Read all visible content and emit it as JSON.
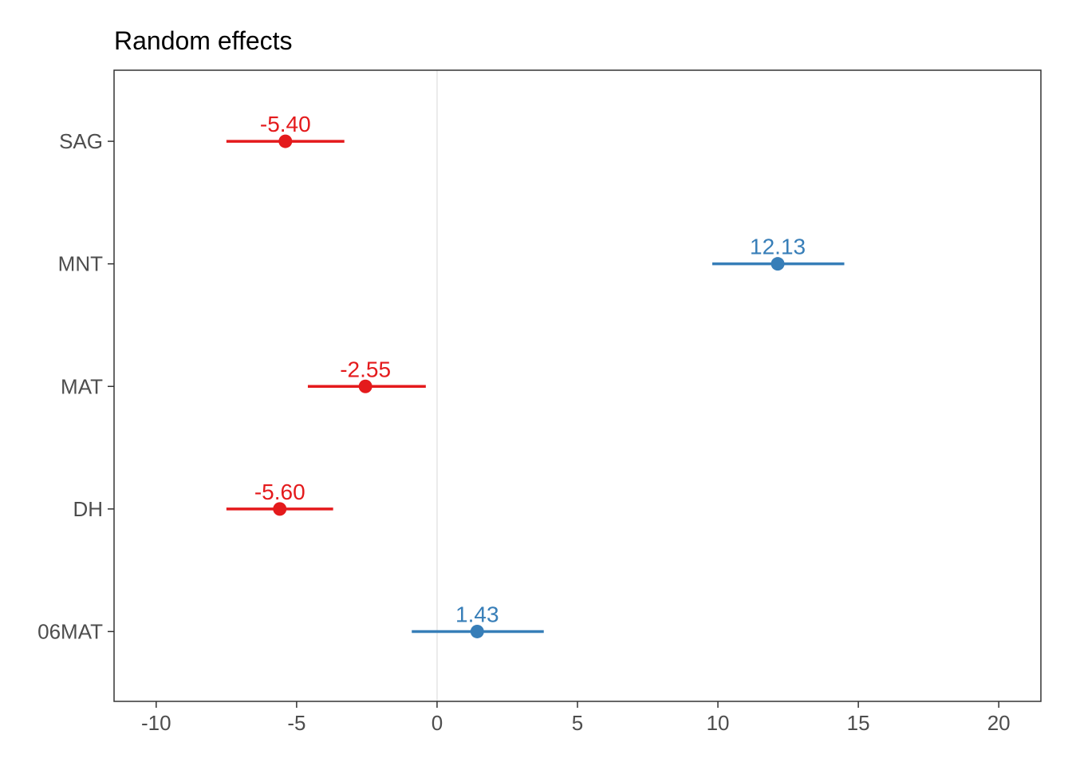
{
  "chart_data": {
    "type": "forest",
    "title": "Random effects",
    "xlabel": "",
    "ylabel": "",
    "xlim": [
      -11.5,
      21.5
    ],
    "x_ticks": [
      -10,
      -5,
      0,
      5,
      10,
      15,
      20
    ],
    "x_tick_labels": [
      "-10",
      "-5",
      "0",
      "5",
      "10",
      "15",
      "20"
    ],
    "reference_line": 0,
    "grid": false,
    "legend": "none",
    "colors": {
      "negative": "#e41a1c",
      "positive": "#377eb8"
    },
    "categories": [
      "SAG",
      "MNT",
      "MAT",
      "DH",
      "06MAT"
    ],
    "points": [
      {
        "group": "SAG",
        "estimate": -5.4,
        "low": -7.5,
        "high": -3.3,
        "label": "-5.40",
        "sign": "negative"
      },
      {
        "group": "MNT",
        "estimate": 12.13,
        "low": 9.8,
        "high": 14.5,
        "label": "12.13",
        "sign": "positive"
      },
      {
        "group": "MAT",
        "estimate": -2.55,
        "low": -4.6,
        "high": -0.4,
        "label": "-2.55",
        "sign": "negative"
      },
      {
        "group": "DH",
        "estimate": -5.6,
        "low": -7.5,
        "high": -3.7,
        "label": "-5.60",
        "sign": "negative"
      },
      {
        "group": "06MAT",
        "estimate": 1.43,
        "low": -0.9,
        "high": 3.8,
        "label": "1.43",
        "sign": "positive"
      }
    ]
  }
}
